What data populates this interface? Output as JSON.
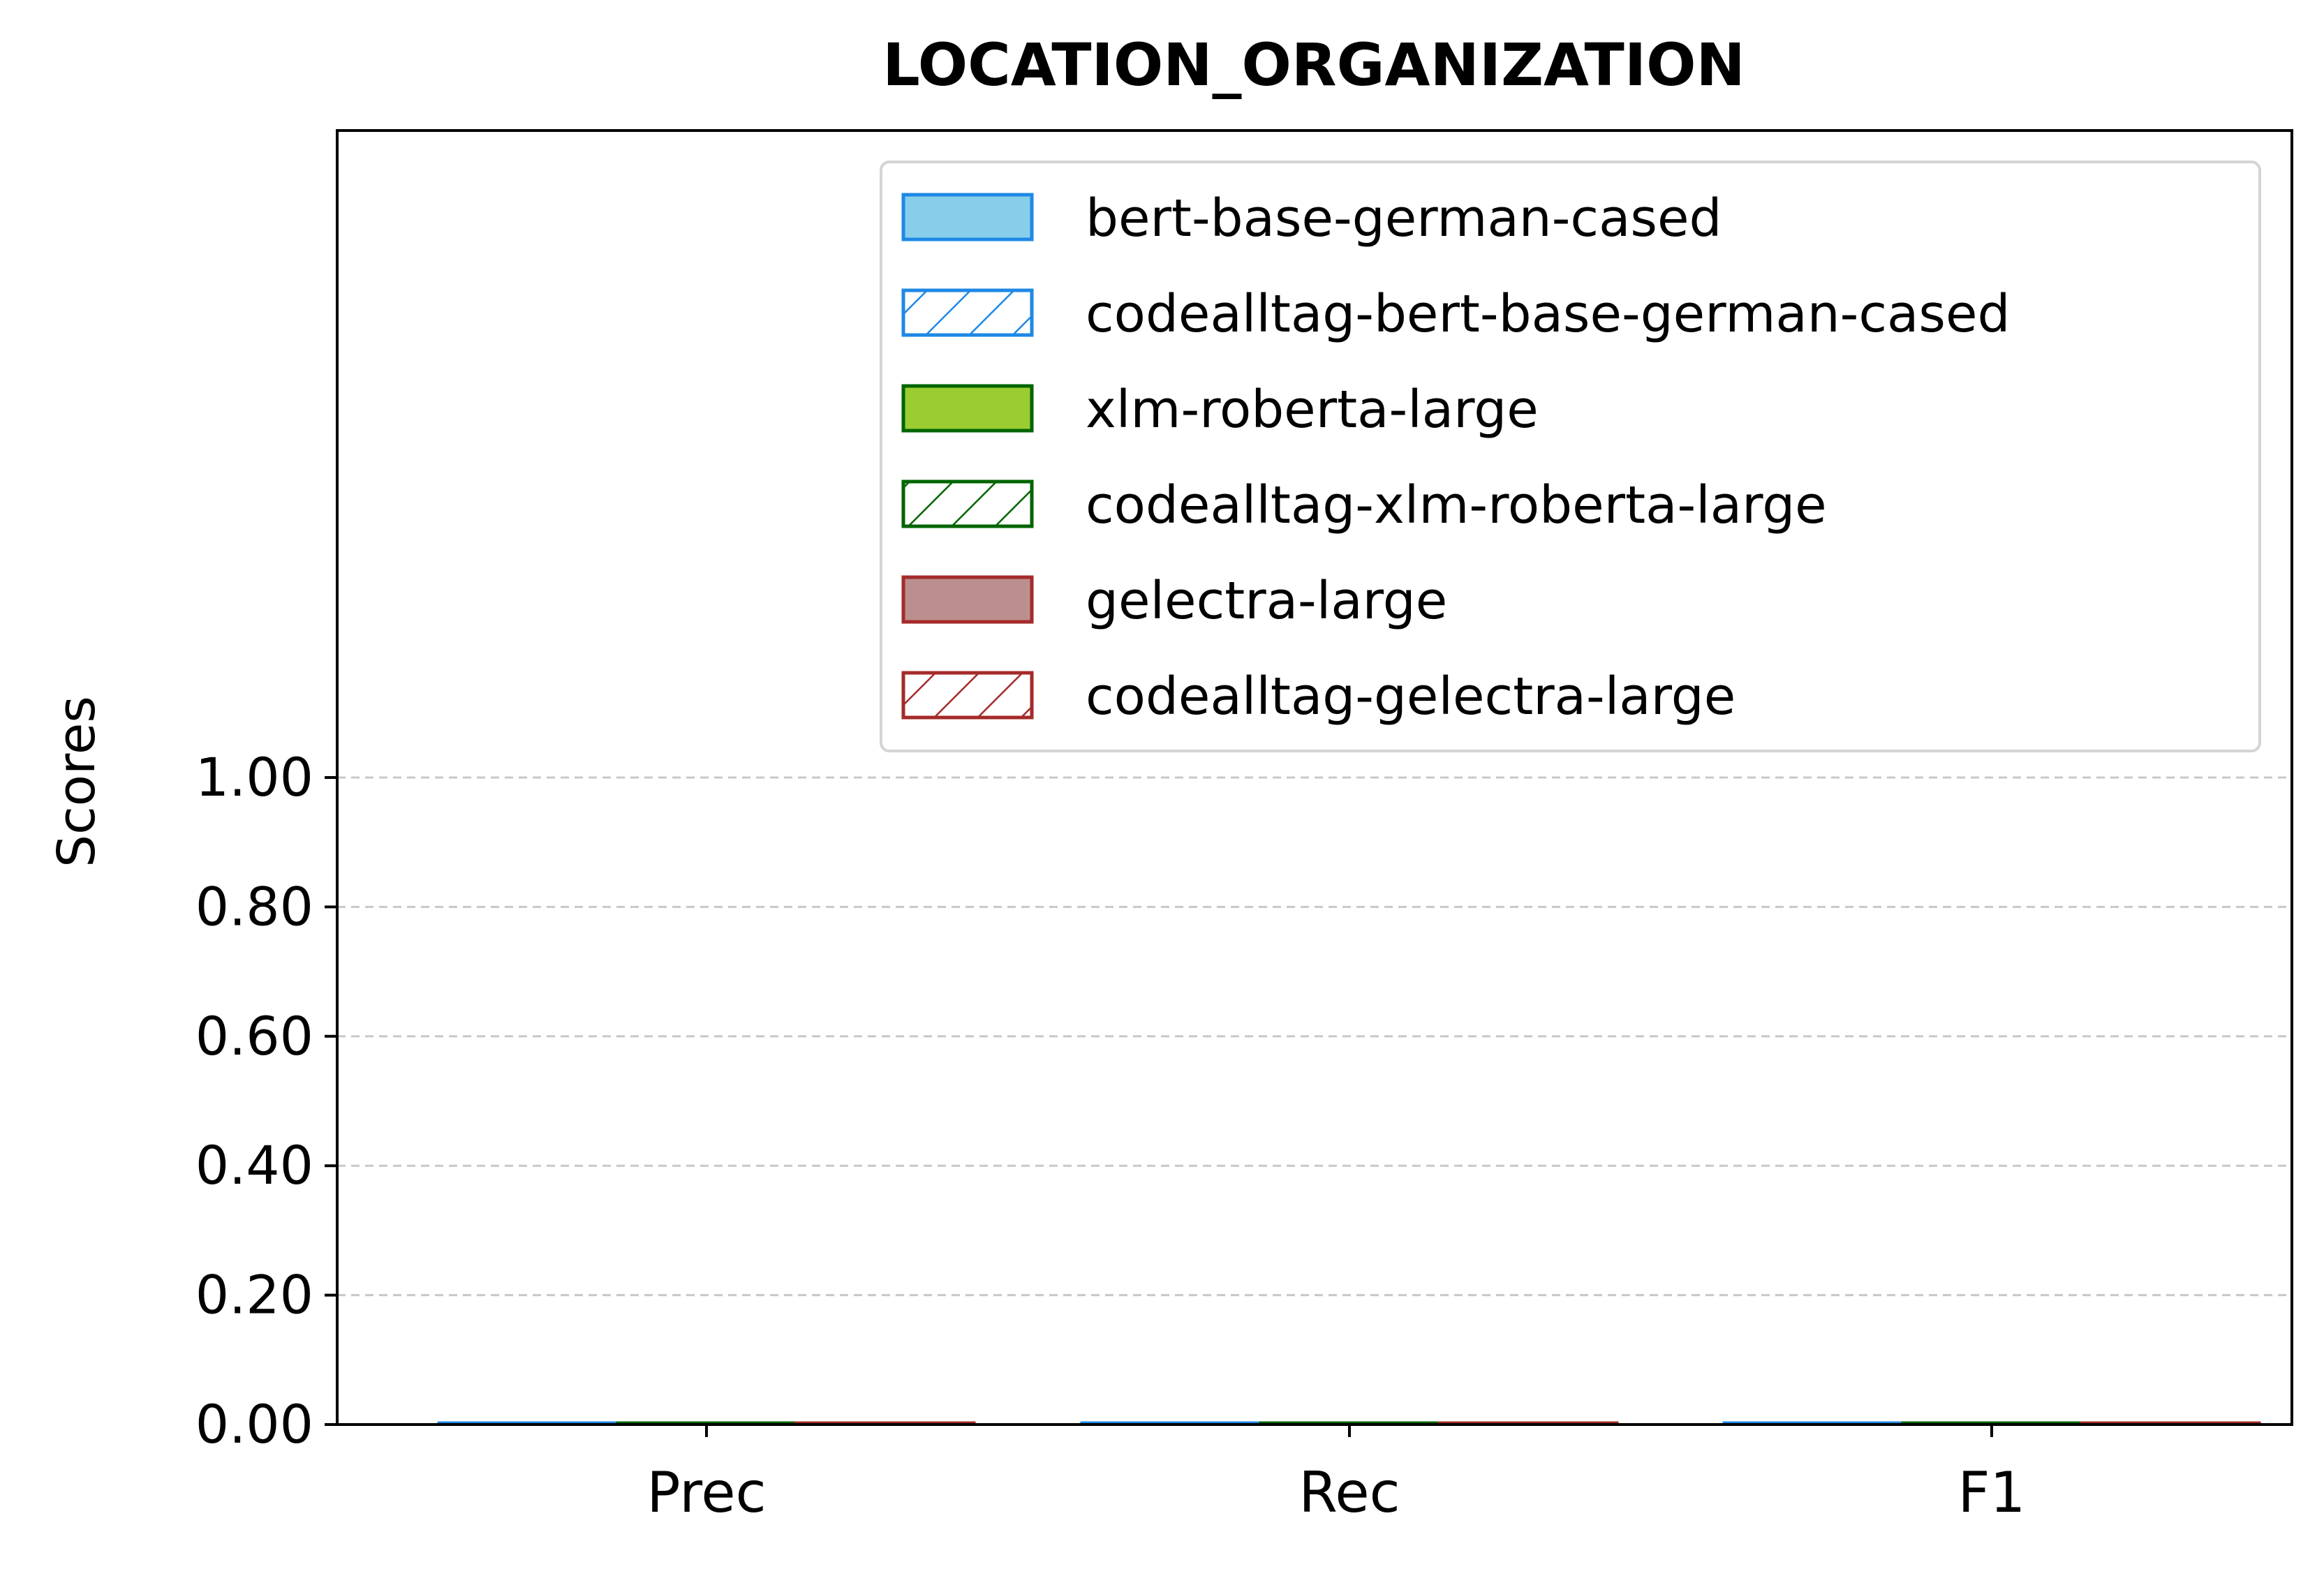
{
  "chart_data": {
    "type": "bar",
    "title": "LOCATION_ORGANIZATION",
    "xlabel": "",
    "ylabel": "Scores",
    "categories": [
      "Prec",
      "Rec",
      "F1"
    ],
    "ylim": [
      0,
      2.0
    ],
    "yticks": [
      "0.00",
      "0.20",
      "0.40",
      "0.60",
      "0.80",
      "1.00"
    ],
    "ytick_values": [
      0,
      0.2,
      0.4,
      0.6,
      0.8,
      1.0
    ],
    "grid": "y-dashed",
    "legend_position": "top-right",
    "series": [
      {
        "name": "bert-base-german-cased",
        "values": [
          0,
          0,
          0
        ],
        "fill": "#87CEEB",
        "edge": "#1E88E5",
        "hatch": false
      },
      {
        "name": "codealltag-bert-base-german-cased",
        "values": [
          0,
          0,
          0
        ],
        "fill": "#ffffff",
        "edge": "#1E88E5",
        "hatch": true
      },
      {
        "name": "xlm-roberta-large",
        "values": [
          0,
          0,
          0
        ],
        "fill": "#9ACD32",
        "edge": "#006400",
        "hatch": false
      },
      {
        "name": "codealltag-xlm-roberta-large",
        "values": [
          0,
          0,
          0
        ],
        "fill": "#ffffff",
        "edge": "#006400",
        "hatch": true
      },
      {
        "name": "gelectra-large",
        "values": [
          0,
          0,
          0
        ],
        "fill": "#BC8F8F",
        "edge": "#A52A2A",
        "hatch": false
      },
      {
        "name": "codealltag-gelectra-large",
        "values": [
          0,
          0,
          0
        ],
        "fill": "#ffffff",
        "edge": "#A52A2A",
        "hatch": true
      }
    ]
  }
}
